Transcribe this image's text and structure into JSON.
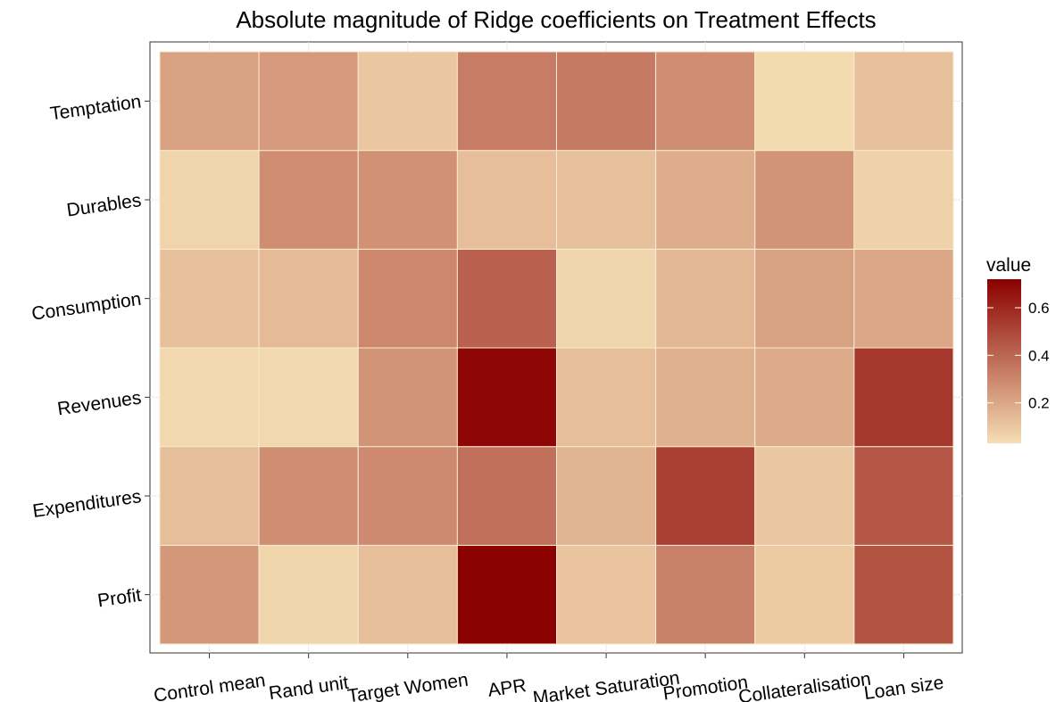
{
  "chart_data": {
    "type": "heatmap",
    "title": "Absolute magnitude of Ridge coefficients on Treatment Effects",
    "x": [
      "Control mean",
      "Rand unit",
      "Target Women",
      "APR",
      "Market Saturation",
      "Promotion",
      "Collateralisation",
      "Loan size"
    ],
    "y": [
      "Profit",
      "Expenditures",
      "Revenues",
      "Consumption",
      "Durables",
      "Temptation"
    ],
    "values": [
      [
        0.25,
        0.06,
        0.13,
        0.72,
        0.11,
        0.32,
        0.09,
        0.46
      ],
      [
        0.13,
        0.28,
        0.29,
        0.37,
        0.16,
        0.52,
        0.1,
        0.45
      ],
      [
        0.05,
        0.05,
        0.26,
        0.7,
        0.13,
        0.17,
        0.19,
        0.55
      ],
      [
        0.12,
        0.14,
        0.3,
        0.42,
        0.06,
        0.15,
        0.22,
        0.2
      ],
      [
        0.06,
        0.28,
        0.27,
        0.13,
        0.12,
        0.18,
        0.26,
        0.07
      ],
      [
        0.22,
        0.24,
        0.1,
        0.33,
        0.34,
        0.28,
        0.04,
        0.12
      ]
    ],
    "colorscale": [
      "#F5DEB3",
      "#8B0000"
    ],
    "zlim": [
      0.03,
      0.72
    ],
    "legend_title": "value",
    "legend_ticks": [
      0.2,
      0.4,
      0.6
    ]
  }
}
